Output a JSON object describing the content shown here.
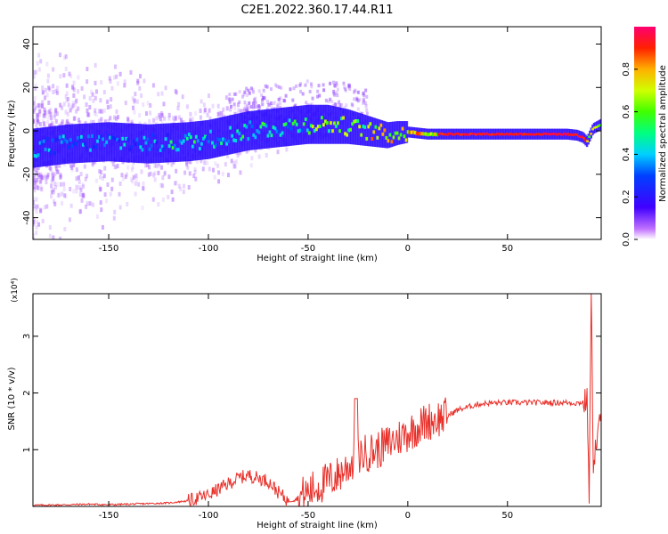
{
  "title": "C2E1.2022.360.17.44.R11",
  "chart_data": [
    {
      "type": "heatmap",
      "xlabel": "Height of straight line (km)",
      "ylabel": "Frequency (Hz)",
      "xlim": [
        -188,
        97
      ],
      "ylim": [
        -50,
        48
      ],
      "xticks": [
        -150,
        -100,
        -50,
        0,
        50
      ],
      "yticks": [
        -40,
        -20,
        0,
        20,
        40
      ],
      "ridge": {
        "x": [
          -188,
          -170,
          -150,
          -130,
          -110,
          -100,
          -90,
          -80,
          -70,
          -60,
          -50,
          -40,
          -30,
          -25,
          -20,
          -15,
          -10,
          -5,
          0,
          5,
          10,
          15,
          20,
          30,
          40,
          50,
          60,
          70,
          80,
          85,
          88,
          90,
          93,
          97
        ],
        "y": [
          -8,
          -6,
          -5,
          -6,
          -5,
          -4,
          -2,
          0,
          1,
          2,
          3,
          3,
          2,
          1,
          0,
          -1,
          -2,
          -1,
          -0.5,
          -1,
          -1.5,
          -1.5,
          -1.5,
          -1.5,
          -1.5,
          -1.5,
          -1.5,
          -1.5,
          -1.5,
          -2,
          -3,
          -5,
          1,
          3
        ]
      },
      "colorbar": {
        "label": "Normalized spectral amplitude",
        "range": [
          0,
          1
        ],
        "ticks": [
          "0.0",
          "0.2",
          "0.4",
          "0.6",
          "0.8"
        ]
      }
    },
    {
      "type": "line",
      "xlabel": "Height of straight line (km)",
      "ylabel": "SNR (10 * v/v)",
      "y_multiplier": "(x10⁴)",
      "xlim": [
        -188,
        97
      ],
      "ylim": [
        0,
        3.75
      ],
      "xticks": [
        -150,
        -100,
        -50,
        0,
        50
      ],
      "yticks": [
        1,
        2,
        3
      ],
      "series": [
        {
          "x": [
            -188,
            -170,
            -160,
            -150,
            -140,
            -130,
            -120,
            -110,
            -105,
            -100,
            -95,
            -90,
            -85,
            -80,
            -75,
            -70,
            -65,
            -60,
            -55,
            -50,
            -45,
            -40,
            -35,
            -30,
            -25,
            -20,
            -15,
            -10,
            -5,
            0,
            5,
            10,
            15,
            20,
            25,
            30,
            35,
            40,
            50,
            60,
            70,
            80,
            85,
            88,
            90,
            91,
            92,
            93,
            95,
            97
          ],
          "y": [
            0.02,
            0.03,
            0.04,
            0.03,
            0.04,
            0.05,
            0.06,
            0.1,
            0.15,
            0.2,
            0.3,
            0.4,
            0.5,
            0.55,
            0.5,
            0.45,
            0.25,
            0.1,
            0.15,
            0.25,
            0.35,
            0.45,
            0.55,
            0.7,
            0.9,
            0.95,
            1.0,
            1.1,
            1.2,
            1.3,
            1.4,
            1.5,
            1.55,
            1.6,
            1.7,
            1.75,
            1.8,
            1.82,
            1.83,
            1.83,
            1.83,
            1.83,
            1.82,
            1.84,
            1.85,
            0.15,
            3.75,
            0.8,
            1.2,
            1.6
          ],
          "color": "#e8302a"
        }
      ]
    }
  ]
}
